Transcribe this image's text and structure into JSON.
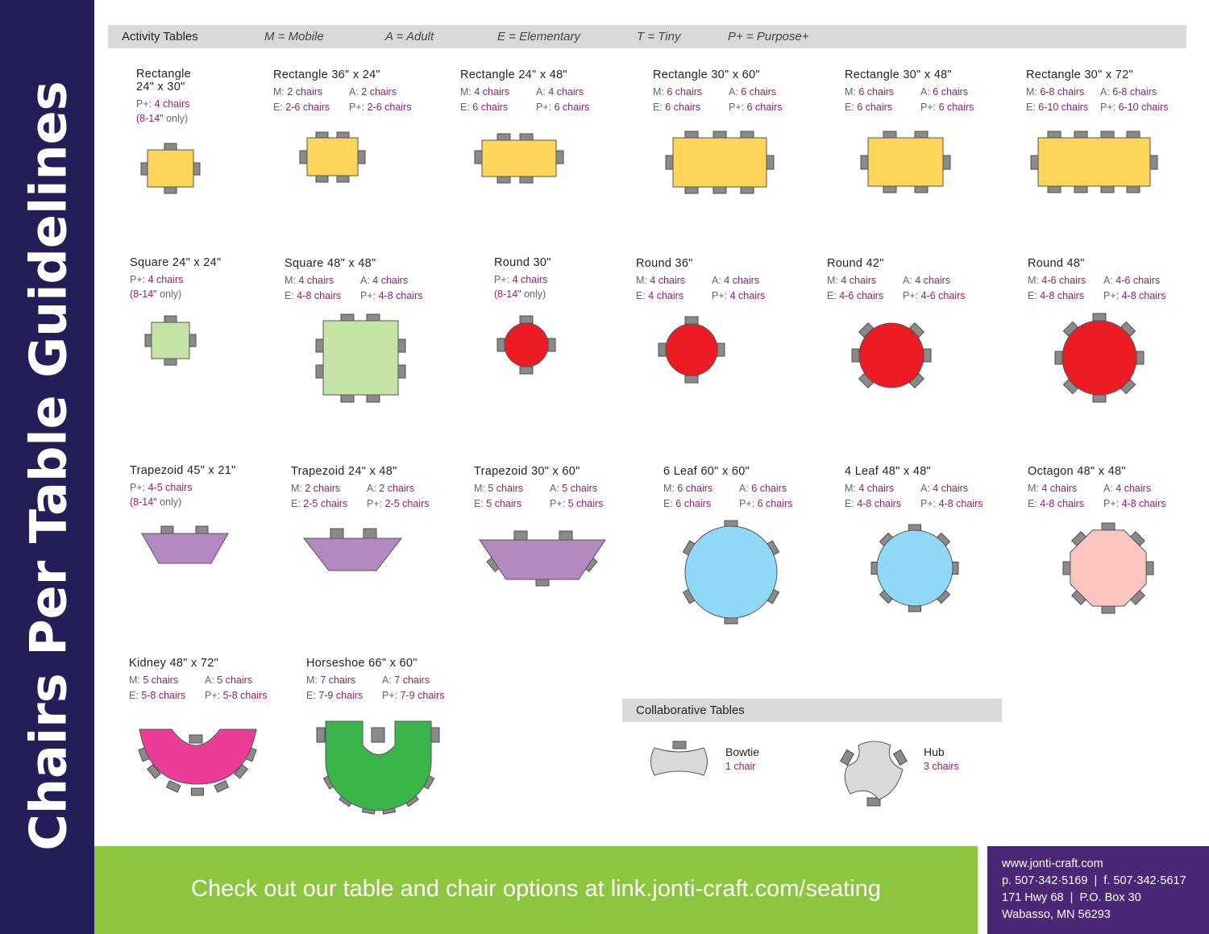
{
  "sidebar": {
    "title": "Chairs Per Table Guidelines"
  },
  "header": {
    "title": "Activity Tables",
    "legend": [
      "M = Mobile",
      "A = Adult",
      "E = Elementary",
      "T = Tiny",
      "P+ = Purpose+"
    ]
  },
  "tables": [
    {
      "name": "Rectangle 24\" x 30\"",
      "lines": [
        [
          [
            "P+:",
            "4 chairs"
          ]
        ]
      ],
      "note": "(8-14\"",
      "note_tail": " only)"
    },
    {
      "name": "Rectangle 36\" x 24\"",
      "lines": [
        [
          [
            "M:",
            "2 chairs"
          ],
          [
            "A:",
            "2 chairs"
          ]
        ],
        [
          [
            "E:",
            "2-6 chairs"
          ],
          [
            "P+:",
            "2-6 chairs"
          ]
        ]
      ]
    },
    {
      "name": "Rectangle 24\" x 48\"",
      "lines": [
        [
          [
            "M:",
            "4 chairs"
          ],
          [
            "A:",
            "4 chairs"
          ]
        ],
        [
          [
            "E:",
            "6 chairs"
          ],
          [
            "P+:",
            "6 chairs"
          ]
        ]
      ]
    },
    {
      "name": "Rectangle 30\" x 60\"",
      "lines": [
        [
          [
            "M:",
            "6 chairs"
          ],
          [
            "A:",
            "6 chairs"
          ]
        ],
        [
          [
            "E:",
            "6 chairs"
          ],
          [
            "P+:",
            "6 chairs"
          ]
        ]
      ]
    },
    {
      "name": "Rectangle 30\" x 48\"",
      "lines": [
        [
          [
            "M:",
            "6 chairs"
          ],
          [
            "A:",
            "6 chairs"
          ]
        ],
        [
          [
            "E:",
            "6 chairs"
          ],
          [
            "P+:",
            "6 chairs"
          ]
        ]
      ]
    },
    {
      "name": "Rectangle 30\" x 72\"",
      "lines": [
        [
          [
            "M:",
            "6-8 chairs"
          ],
          [
            "A:",
            "6-8 chairs"
          ]
        ],
        [
          [
            "E:",
            "6-10 chairs"
          ],
          [
            "P+:",
            "6-10 chairs"
          ]
        ]
      ]
    },
    {
      "name": "Square 24\" x 24\"",
      "lines": [
        [
          [
            "P+:",
            "4 chairs"
          ]
        ]
      ],
      "note": "(8-14\"",
      "note_tail": " only)"
    },
    {
      "name": "Square 48\" x 48\"",
      "lines": [
        [
          [
            "M:",
            "4 chairs"
          ],
          [
            "A:",
            "4 chairs"
          ]
        ],
        [
          [
            "E:",
            "4-8 chairs"
          ],
          [
            "P+:",
            "4-8 chairs"
          ]
        ]
      ]
    },
    {
      "name": "Round 30\"",
      "lines": [
        [
          [
            "P+:",
            "4 chairs"
          ]
        ]
      ],
      "note": "(8-14\"",
      "note_tail": " only)"
    },
    {
      "name": "Round 36\"",
      "lines": [
        [
          [
            "M:",
            "4 chairs"
          ],
          [
            "A:",
            "4 chairs"
          ]
        ],
        [
          [
            "E:",
            "4 chairs"
          ],
          [
            "P+:",
            "4 chairs"
          ]
        ]
      ]
    },
    {
      "name": "Round 42\"",
      "lines": [
        [
          [
            "M:",
            "4 chairs"
          ],
          [
            "A:",
            "4 chairs"
          ]
        ],
        [
          [
            "E:",
            "4-6 chairs"
          ],
          [
            "P+:",
            "4-6 chairs"
          ]
        ]
      ]
    },
    {
      "name": "Round 48\"",
      "lines": [
        [
          [
            "M:",
            "4-6 chairs"
          ],
          [
            "A:",
            "4-6 chairs"
          ]
        ],
        [
          [
            "E:",
            "4-8 chairs"
          ],
          [
            "P+:",
            "4-8 chairs"
          ]
        ]
      ]
    },
    {
      "name": "Trapezoid 45\" x 21\"",
      "lines": [
        [
          [
            "P+:",
            "4-5 chairs"
          ]
        ]
      ],
      "note": "(8-14\"",
      "note_tail": " only)"
    },
    {
      "name": "Trapezoid 24\" x 48\"",
      "lines": [
        [
          [
            "M:",
            "2 chairs"
          ],
          [
            "A:",
            "2 chairs"
          ]
        ],
        [
          [
            "E:",
            "2-5 chairs"
          ],
          [
            "P+:",
            "2-5 chairs"
          ]
        ]
      ]
    },
    {
      "name": "Trapezoid 30\" x 60\"",
      "lines": [
        [
          [
            "M:",
            "5 chairs"
          ],
          [
            "A:",
            "5 chairs"
          ]
        ],
        [
          [
            "E:",
            "5 chairs"
          ],
          [
            "P+:",
            "5 chairs"
          ]
        ]
      ]
    },
    {
      "name": "6 Leaf 60\" x 60\"",
      "lines": [
        [
          [
            "M:",
            "6 chairs"
          ],
          [
            "A:",
            "6 chairs"
          ]
        ],
        [
          [
            "E:",
            "6 chairs"
          ],
          [
            "P+:",
            "6 chairs"
          ]
        ]
      ]
    },
    {
      "name": "4 Leaf 48\" x 48\"",
      "lines": [
        [
          [
            "M:",
            "4 chairs"
          ],
          [
            "A:",
            "4 chairs"
          ]
        ],
        [
          [
            "E:",
            "4-8 chairs"
          ],
          [
            "P+:",
            "4-8 chairs"
          ]
        ]
      ]
    },
    {
      "name": "Octagon 48\" x 48\"",
      "lines": [
        [
          [
            "M:",
            "4 chairs"
          ],
          [
            "A:",
            "4 chairs"
          ]
        ],
        [
          [
            "E:",
            "4-8 chairs"
          ],
          [
            "P+:",
            "4-8 chairs"
          ]
        ]
      ]
    },
    {
      "name": "Kidney 48\" x 72\"",
      "lines": [
        [
          [
            "M:",
            "5 chairs"
          ],
          [
            "A:",
            "5 chairs"
          ]
        ],
        [
          [
            "E:",
            "5-8 chairs"
          ],
          [
            "P+:",
            "5-8 chairs"
          ]
        ]
      ]
    },
    {
      "name": "Horseshoe 66\" x 60\"",
      "lines": [
        [
          [
            "M:",
            "7 chairs"
          ],
          [
            "A:",
            "7 chairs"
          ]
        ],
        [
          [
            "E:",
            "7-9 chairs"
          ],
          [
            "P+:",
            "7-9 chairs"
          ]
        ]
      ]
    }
  ],
  "collaborative": {
    "title": "Collaborative Tables",
    "items": [
      {
        "name": "Bowtie",
        "chairs": "1 chair"
      },
      {
        "name": "Hub",
        "chairs": "3 chairs"
      }
    ]
  },
  "footer": {
    "cta": "Check out our table and chair options at link.jonti-craft.com/seating"
  },
  "contact": {
    "website": "www.jonti-craft.com",
    "phone": "p. 507·342·5169  |  f. 507·342·5617",
    "address": "171 Hwy 68  |  P.O. Box 30",
    "city": "Wabasso, MN 56293"
  },
  "colors": {
    "sidebar": "#231e58",
    "rectangle": "#fdd55b",
    "square": "#c5e3a5",
    "round": "#ed1c24",
    "trapezoid": "#b388c0",
    "leaf": "#8fd8f8",
    "octagon": "#fcc5c0",
    "kidney": "#ec3d96",
    "horseshoe": "#3ab54a",
    "collab": "#d9d9d9",
    "footer": "#8cc63f",
    "contact": "#4a2777",
    "value": "#8b2470"
  }
}
